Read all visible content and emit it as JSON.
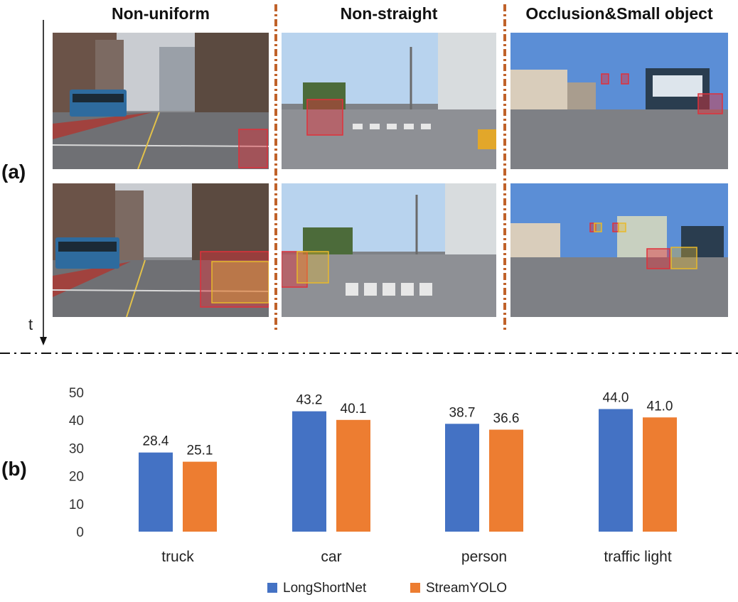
{
  "labels": {
    "panel_a": "(a)",
    "panel_b": "(b)",
    "time_axis": "t"
  },
  "columns": [
    {
      "title": "Non-uniform"
    },
    {
      "title": "Non-straight"
    },
    {
      "title": "Occlusion&Small object"
    }
  ],
  "colors": {
    "longshortnet": "#4472c4",
    "streamyolo": "#ed7d31",
    "divider": "#c0622a",
    "box_red": "#e0303a",
    "box_yellow": "#e8b92a"
  },
  "chart_data": {
    "type": "bar",
    "categories": [
      "truck",
      "car",
      "person",
      "traffic light"
    ],
    "series": [
      {
        "name": "LongShortNet",
        "values": [
          28.4,
          43.2,
          38.7,
          44.0
        ],
        "labels": [
          "28.4",
          "43.2",
          "38.7",
          "44.0"
        ]
      },
      {
        "name": "StreamYOLO",
        "values": [
          25.1,
          40.1,
          36.6,
          41.0
        ],
        "labels": [
          "25.1",
          "40.1",
          "36.6",
          "41.0"
        ]
      }
    ],
    "ylim": [
      0,
      50
    ],
    "yticks": [
      "0",
      "10",
      "20",
      "30",
      "40",
      "50"
    ],
    "grid": false,
    "legend": "bottom-center"
  }
}
